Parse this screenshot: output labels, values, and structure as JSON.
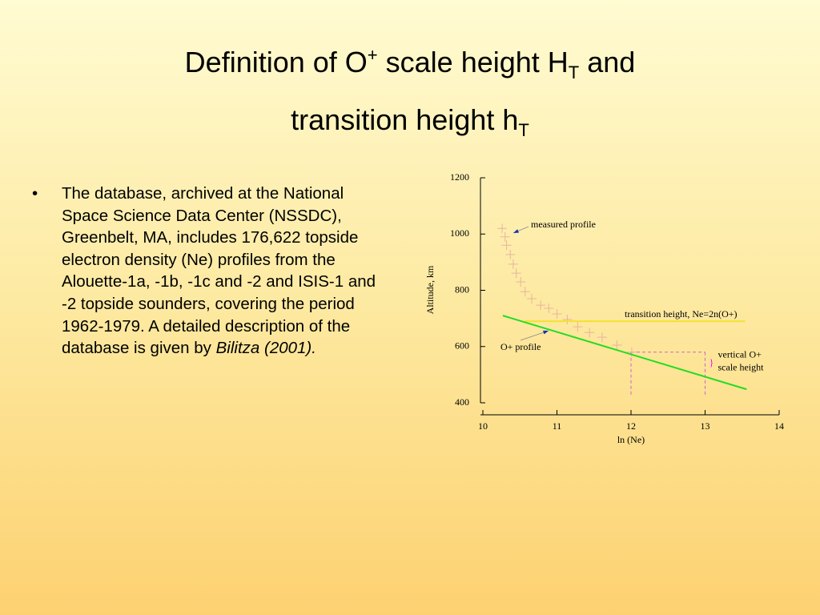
{
  "title": {
    "parts": [
      "Definition of O",
      "+",
      " scale height H",
      "T",
      " and",
      "transition height h",
      "T"
    ]
  },
  "bullet": {
    "text": "The database, archived at the National Space Science Data Center (NSSDC), Greenbelt, MA, includes 176,622 topside electron density (Ne) profiles from the Alouette-1a, -1b, -1c and -2 and ISIS-1 and -2 topside sounders, covering the period 1962-1979. A detailed description of the database is given by ",
    "citation": "Bilitza (2001)."
  },
  "chart_data": {
    "type": "scatter",
    "x_label": "ln (Ne)",
    "y_label": "Altitude, km",
    "xlim": [
      10,
      14
    ],
    "ylim": [
      400,
      1200
    ],
    "xticks": [
      10,
      11,
      12,
      13,
      14
    ],
    "yticks": [
      400,
      600,
      800,
      1000,
      1200
    ],
    "series": [
      {
        "name": "measured profile",
        "type": "scatter",
        "marker": "plus",
        "color": "#e8b4a0",
        "x": [
          10.26,
          10.3,
          10.32,
          10.37,
          10.41,
          10.45,
          10.51,
          10.57,
          10.66,
          10.78,
          10.89,
          11.0,
          11.14,
          11.28,
          11.44,
          11.61,
          11.81,
          12.01
        ],
        "values": [
          1020,
          990,
          960,
          927,
          893,
          861,
          830,
          795,
          770,
          747,
          736,
          716,
          696,
          670,
          650,
          633,
          605,
          580
        ]
      },
      {
        "name": "transition height,  Ne=2n(O+)",
        "type": "line",
        "color": "#f2e230",
        "x": [
          10.56,
          13.54
        ],
        "values": [
          690,
          690
        ]
      },
      {
        "name": "O+ profile",
        "type": "line",
        "color": "#22dd22",
        "x": [
          10.27,
          13.56
        ],
        "values": [
          710,
          448
        ]
      }
    ],
    "annotations": [
      {
        "lines": [
          "vertical O+",
          "scale height"
        ],
        "x": [
          12,
          13
        ],
        "y": 580,
        "color": "#cc66cc",
        "brace_color": "#ff00ff",
        "brace": "}"
      }
    ]
  }
}
